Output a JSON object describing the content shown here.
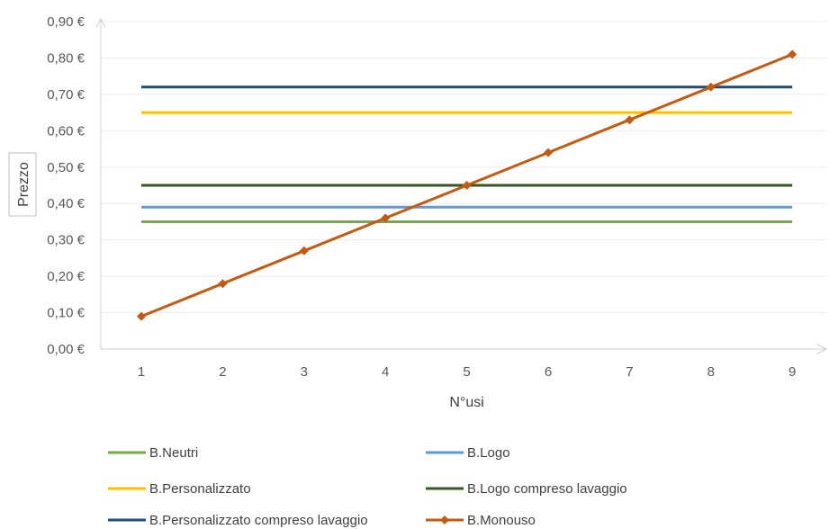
{
  "chart_data": {
    "type": "line",
    "xlabel": "N°usi",
    "ylabel": "Prezzo",
    "x": [
      1,
      2,
      3,
      4,
      5,
      6,
      7,
      8,
      9
    ],
    "ylim": [
      0,
      0.9
    ],
    "yticks": [
      0,
      0.1,
      0.2,
      0.3,
      0.4,
      0.5,
      0.6,
      0.7,
      0.8,
      0.9
    ],
    "ytick_labels": [
      "0,00 €",
      "0,10 €",
      "0,20 €",
      "0,30 €",
      "0,40 €",
      "0,50 €",
      "0,60 €",
      "0,70 €",
      "0,80 €",
      "0,90 €"
    ],
    "grid": "horizontal",
    "legend_position": "bottom",
    "series": [
      {
        "name": "B.Neutri",
        "color": "#70ad47",
        "markers": false,
        "values": [
          0.35,
          0.35,
          0.35,
          0.35,
          0.35,
          0.35,
          0.35,
          0.35,
          0.35
        ]
      },
      {
        "name": "B.Logo",
        "color": "#5b9bd5",
        "markers": false,
        "values": [
          0.39,
          0.39,
          0.39,
          0.39,
          0.39,
          0.39,
          0.39,
          0.39,
          0.39
        ]
      },
      {
        "name": "B.Personalizzato",
        "color": "#ffc000",
        "markers": false,
        "values": [
          0.65,
          0.65,
          0.65,
          0.65,
          0.65,
          0.65,
          0.65,
          0.65,
          0.65
        ]
      },
      {
        "name": "B.Logo compreso lavaggio",
        "color": "#375623",
        "markers": false,
        "values": [
          0.45,
          0.45,
          0.45,
          0.45,
          0.45,
          0.45,
          0.45,
          0.45,
          0.45
        ]
      },
      {
        "name": "B.Personalizzato compreso lavaggio",
        "color": "#1f4e79",
        "markers": false,
        "values": [
          0.72,
          0.72,
          0.72,
          0.72,
          0.72,
          0.72,
          0.72,
          0.72,
          0.72
        ]
      },
      {
        "name": "B.Monouso",
        "color": "#c55a11",
        "markers": true,
        "values": [
          0.09,
          0.18,
          0.27,
          0.36,
          0.45,
          0.54,
          0.63,
          0.72,
          0.81
        ]
      }
    ]
  }
}
